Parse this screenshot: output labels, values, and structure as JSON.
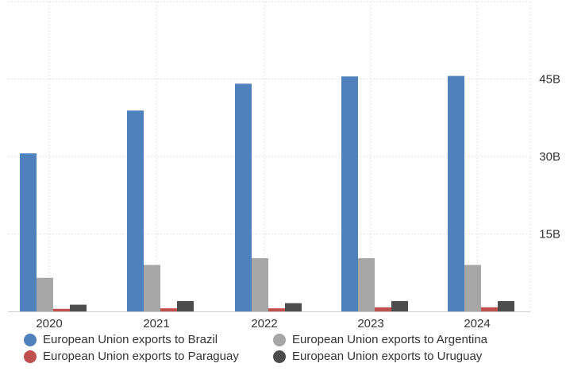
{
  "chart_data": {
    "type": "bar",
    "title": "",
    "xlabel": "",
    "ylabel": "",
    "categories": [
      "2020",
      "2021",
      "2022",
      "2023",
      "2024"
    ],
    "ylim": [
      0,
      60
    ],
    "yticks": [
      15,
      30,
      45
    ],
    "ytick_labels": [
      "15B",
      "30B",
      "45B"
    ],
    "grid": true,
    "legend_position": "bottom",
    "series": [
      {
        "name": "European Union exports to Brazil",
        "color": "#4f81bd",
        "values": [
          30.6,
          38.9,
          44.1,
          45.5,
          45.6
        ]
      },
      {
        "name": "European Union exports to Argentina",
        "color": "#a6a6a6",
        "values": [
          6.5,
          9.0,
          10.3,
          10.3,
          9.0
        ]
      },
      {
        "name": "European Union exports to Paraguay",
        "color": "#c0504d",
        "values": [
          0.5,
          0.6,
          0.6,
          0.8,
          0.8
        ]
      },
      {
        "name": "European Union exports to Uruguay",
        "color": "#4d4d4d",
        "values": [
          1.3,
          2.0,
          1.6,
          2.0,
          2.0
        ]
      }
    ]
  }
}
